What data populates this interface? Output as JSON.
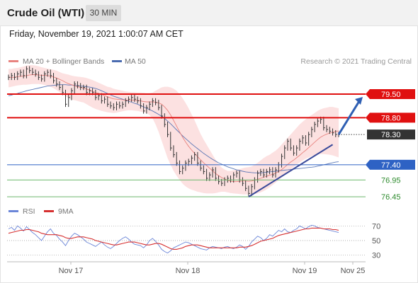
{
  "header": {
    "title": "Crude Oil (WTI)",
    "timeframe": "30 MIN"
  },
  "datetime": "Friday, November 19, 2021 1:00:07 AM CET",
  "copyright": "Research © 2021 Trading Central",
  "colors": {
    "price": "#333333",
    "ma20": "#e8837f",
    "bollinger_fill": "#fcdcdc",
    "ma50": "#4a6bb0",
    "resistance": "#e01010",
    "support_blue": "#2e62c4",
    "support_green": "#6cb86c",
    "trendline": "#3a4a9a",
    "arrow": "#2f5fb3",
    "rsi": "#6b86d8",
    "rsi_9ma": "#d63030",
    "label_current_bg": "#333333",
    "green_text": "#2e8b2e"
  },
  "chart_data": [
    {
      "type": "line",
      "panel": "price",
      "legend": [
        {
          "name": "MA 20 + Bollinger Bands",
          "color": "#e8837f"
        },
        {
          "name": "MA 50",
          "color": "#4a6bb0"
        }
      ],
      "legend_position": "top-left",
      "x_ticks": [
        "Nov 17",
        "Nov 18",
        "Nov 19",
        "Nov 25"
      ],
      "ylim": [
        76.2,
        80.3
      ],
      "grid": false,
      "levels": [
        {
          "value": 79.5,
          "label": "79.50",
          "kind": "resistance"
        },
        {
          "value": 78.8,
          "label": "78.80",
          "kind": "resistance"
        },
        {
          "value": 78.3,
          "label": "78.30",
          "kind": "current"
        },
        {
          "value": 77.4,
          "label": "77.40",
          "kind": "pivot"
        },
        {
          "value": 76.95,
          "label": "76.95",
          "kind": "support"
        },
        {
          "value": 76.45,
          "label": "76.45",
          "kind": "support"
        }
      ],
      "series": [
        {
          "name": "MA 20 + Bollinger Bands",
          "role": "price",
          "values": [
            80.0,
            80.05,
            80.0,
            80.1,
            80.15,
            80.05,
            80.25,
            80.2,
            80.15,
            80.1,
            80.0,
            79.95,
            80.1,
            80.15,
            80.05,
            79.9,
            79.8,
            79.7,
            79.55,
            79.2,
            79.4,
            79.6,
            79.8,
            79.75,
            79.7,
            79.7,
            79.55,
            79.6,
            79.55,
            79.4,
            79.45,
            79.3,
            79.35,
            79.2,
            79.15,
            79.1,
            79.2,
            79.15,
            79.2,
            79.3,
            79.35,
            79.4,
            79.35,
            79.3,
            79.15,
            79.0,
            79.1,
            79.2,
            79.3,
            79.25,
            79.1,
            78.85,
            78.6,
            78.3,
            77.9,
            77.7,
            77.45,
            77.2,
            77.3,
            77.45,
            77.5,
            77.6,
            77.7,
            77.45,
            77.3,
            77.2,
            77.0,
            77.1,
            77.25,
            77.0,
            76.9,
            76.85,
            76.95,
            77.0,
            76.95,
            77.1,
            77.15,
            76.95,
            76.85,
            76.7,
            76.55,
            76.75,
            76.95,
            77.15,
            77.2,
            77.1,
            77.2,
            77.25,
            77.1,
            77.25,
            77.4,
            77.65,
            77.9,
            78.1,
            77.9,
            77.75,
            77.9,
            78.1,
            78.2,
            78.05,
            78.3,
            78.45,
            78.6,
            78.7,
            78.75,
            78.5,
            78.45,
            78.4,
            78.35,
            78.3,
            78.3
          ]
        },
        {
          "name": "MA 20",
          "role": "ma20",
          "values": [
            80.0,
            80.0,
            80.0,
            80.02,
            80.03,
            80.04,
            80.05,
            80.07,
            80.08,
            80.08,
            80.07,
            80.06,
            80.06,
            80.05,
            80.04,
            80.01,
            79.98,
            79.94,
            79.9,
            79.85,
            79.81,
            79.78,
            79.75,
            79.72,
            79.7,
            79.68,
            79.65,
            79.62,
            79.58,
            79.55,
            79.52,
            79.49,
            79.46,
            79.42,
            79.39,
            79.36,
            79.35,
            79.34,
            79.33,
            79.32,
            79.32,
            79.32,
            79.32,
            79.31,
            79.3,
            79.28,
            79.27,
            79.27,
            79.27,
            79.26,
            79.24,
            79.2,
            79.12,
            79.02,
            78.88,
            78.72,
            78.55,
            78.38,
            78.22,
            78.08,
            77.95,
            77.84,
            77.74,
            77.64,
            77.55,
            77.46,
            77.38,
            77.3,
            77.22,
            77.14,
            77.08,
            77.02,
            76.98,
            76.94,
            76.91,
            76.9,
            76.9,
            76.91,
            76.92,
            76.92,
            76.91,
            76.92,
            76.94,
            76.97,
            77.0,
            77.03,
            77.06,
            77.09,
            77.12,
            77.15,
            77.2,
            77.26,
            77.33,
            77.41,
            77.48,
            77.54,
            77.61,
            77.68,
            77.76,
            77.83,
            77.91,
            77.99,
            78.07,
            78.15,
            78.22,
            78.27,
            78.31,
            78.34,
            78.37,
            78.39,
            78.41
          ]
        },
        {
          "name": "Bollinger Upper",
          "role": "bb_upper",
          "values": [
            80.25,
            80.25,
            80.27,
            80.28,
            80.3,
            80.32,
            80.35,
            80.36,
            80.36,
            80.35,
            80.33,
            80.3,
            80.28,
            80.26,
            80.24,
            80.22,
            80.2,
            80.16,
            80.12,
            80.1,
            80.08,
            80.05,
            80.03,
            80.02,
            80.01,
            80.0,
            79.98,
            79.95,
            79.92,
            79.88,
            79.84,
            79.8,
            79.76,
            79.72,
            79.7,
            79.66,
            79.64,
            79.62,
            79.6,
            79.58,
            79.57,
            79.56,
            79.56,
            79.55,
            79.55,
            79.54,
            79.53,
            79.53,
            79.55,
            79.6,
            79.65,
            79.7,
            79.72,
            79.72,
            79.7,
            79.66,
            79.6,
            79.5,
            79.38,
            79.24,
            79.08,
            78.9,
            78.72,
            78.52,
            78.32,
            78.15,
            78.0,
            77.85,
            77.7,
            77.55,
            77.42,
            77.32,
            77.26,
            77.22,
            77.22,
            77.24,
            77.26,
            77.27,
            77.3,
            77.32,
            77.33,
            77.35,
            77.4,
            77.46,
            77.53,
            77.6,
            77.66,
            77.7,
            77.76,
            77.82,
            77.9,
            78.0,
            78.1,
            78.2,
            78.3,
            78.4,
            78.5,
            78.6,
            78.68,
            78.75,
            78.82,
            78.88,
            78.94,
            79.0,
            79.05,
            79.08,
            79.1,
            79.12,
            79.12,
            79.1,
            79.08
          ]
        },
        {
          "name": "Bollinger Lower",
          "role": "bb_lower",
          "values": [
            79.7,
            79.72,
            79.74,
            79.76,
            79.77,
            79.78,
            79.78,
            79.79,
            79.8,
            79.8,
            79.8,
            79.79,
            79.77,
            79.75,
            79.72,
            79.68,
            79.62,
            79.56,
            79.5,
            79.44,
            79.38,
            79.34,
            79.32,
            79.3,
            79.27,
            79.25,
            79.2,
            79.15,
            79.1,
            79.06,
            79.03,
            79.0,
            78.98,
            78.96,
            78.95,
            78.94,
            78.95,
            78.97,
            78.99,
            79.01,
            79.02,
            79.02,
            79.01,
            79.0,
            78.98,
            78.96,
            78.94,
            78.88,
            78.78,
            78.6,
            78.38,
            78.12,
            77.86,
            77.6,
            77.4,
            77.22,
            77.08,
            76.95,
            76.84,
            76.76,
            76.7,
            76.66,
            76.63,
            76.6,
            76.58,
            76.56,
            76.55,
            76.55,
            76.55,
            76.56,
            76.58,
            76.6,
            76.6,
            76.58,
            76.56,
            76.55,
            76.54,
            76.53,
            76.52,
            76.52,
            76.52,
            76.52,
            76.53,
            76.55,
            76.58,
            76.62,
            76.67,
            76.73,
            76.8,
            76.87,
            76.94,
            77.02,
            77.1,
            77.18,
            77.26,
            77.34,
            77.41,
            77.47,
            77.53,
            77.58,
            77.62,
            77.66,
            77.69,
            77.71,
            77.72,
            77.72,
            77.71,
            77.7,
            77.68,
            77.65,
            77.62
          ]
        },
        {
          "name": "MA 50",
          "role": "ma50",
          "values": [
            79.45,
            79.47,
            79.5,
            79.52,
            79.55,
            79.57,
            79.6,
            79.62,
            79.64,
            79.66,
            79.68,
            79.7,
            79.72,
            79.74,
            79.75,
            79.76,
            79.77,
            79.78,
            79.78,
            79.78,
            79.77,
            79.77,
            79.76,
            79.75,
            79.74,
            79.73,
            79.72,
            79.71,
            79.69,
            79.67,
            79.64,
            79.6,
            79.56,
            79.52,
            79.48,
            79.44,
            79.41,
            79.38,
            79.35,
            79.32,
            79.29,
            79.26,
            79.23,
            79.2,
            79.16,
            79.12,
            79.08,
            79.04,
            79.0,
            78.95,
            78.9,
            78.84,
            78.78,
            78.7,
            78.62,
            78.53,
            78.44,
            78.35,
            78.26,
            78.18,
            78.1,
            78.02,
            77.95,
            77.88,
            77.81,
            77.74,
            77.68,
            77.62,
            77.56,
            77.51,
            77.46,
            77.42,
            77.38,
            77.34,
            77.31,
            77.28,
            77.25,
            77.23,
            77.21,
            77.19,
            77.18,
            77.17,
            77.16,
            77.16,
            77.16,
            77.17,
            77.18,
            77.19,
            77.2,
            77.21,
            77.22,
            77.23,
            77.24,
            77.25,
            77.26,
            77.27,
            77.28,
            77.29,
            77.3,
            77.31,
            77.32,
            77.33,
            77.34,
            77.36,
            77.38,
            77.4,
            77.42,
            77.44,
            77.46,
            77.48,
            77.49
          ]
        }
      ]
    },
    {
      "type": "line",
      "panel": "rsi",
      "legend": [
        {
          "name": "RSI",
          "color": "#6b86d8"
        },
        {
          "name": "9MA",
          "color": "#d63030"
        }
      ],
      "legend_position": "top-left",
      "y_ticks": [
        70,
        50,
        30
      ],
      "ylim": [
        20,
        80
      ],
      "grid": false,
      "series": [
        {
          "name": "RSI",
          "values": [
            66,
            68,
            64,
            70,
            67,
            63,
            69,
            65,
            61,
            58,
            54,
            50,
            56,
            62,
            66,
            60,
            57,
            52,
            48,
            43,
            50,
            56,
            60,
            58,
            55,
            52,
            48,
            46,
            44,
            42,
            45,
            48,
            44,
            41,
            39,
            42,
            46,
            50,
            53,
            55,
            52,
            48,
            45,
            44,
            43,
            40,
            44,
            50,
            53,
            49,
            44,
            38,
            35,
            33,
            36,
            40,
            42,
            44,
            46,
            48,
            47,
            45,
            43,
            41,
            39,
            38,
            37,
            40,
            42,
            41,
            40,
            39,
            41,
            42,
            40,
            39,
            41,
            44,
            42,
            38,
            42,
            48,
            52,
            56,
            54,
            50,
            53,
            58,
            56,
            60,
            64,
            62,
            66,
            62,
            61,
            64,
            66,
            70,
            68,
            66,
            69,
            71,
            70,
            68,
            67,
            66,
            65,
            64,
            63,
            62,
            61
          ]
        },
        {
          "name": "9MA",
          "values": [
            60,
            61,
            62,
            63,
            64,
            64,
            65,
            65,
            64,
            63,
            62,
            60,
            59,
            58,
            58,
            58,
            58,
            57,
            56,
            54,
            53,
            53,
            54,
            55,
            55,
            55,
            54,
            53,
            52,
            50,
            49,
            48,
            47,
            46,
            45,
            44,
            44,
            45,
            46,
            47,
            48,
            48,
            48,
            47,
            46,
            45,
            44,
            44,
            45,
            46,
            46,
            45,
            43,
            41,
            39,
            38,
            38,
            39,
            40,
            42,
            43,
            44,
            44,
            44,
            43,
            42,
            41,
            40,
            40,
            40,
            40,
            40,
            40,
            40,
            40,
            40,
            40,
            41,
            41,
            41,
            42,
            43,
            45,
            47,
            49,
            50,
            51,
            52,
            53,
            55,
            57,
            58,
            59,
            60,
            61,
            62,
            63,
            64,
            65,
            66,
            66,
            67,
            67,
            67,
            67,
            66,
            66,
            66,
            65,
            65,
            64
          ]
        }
      ]
    }
  ]
}
